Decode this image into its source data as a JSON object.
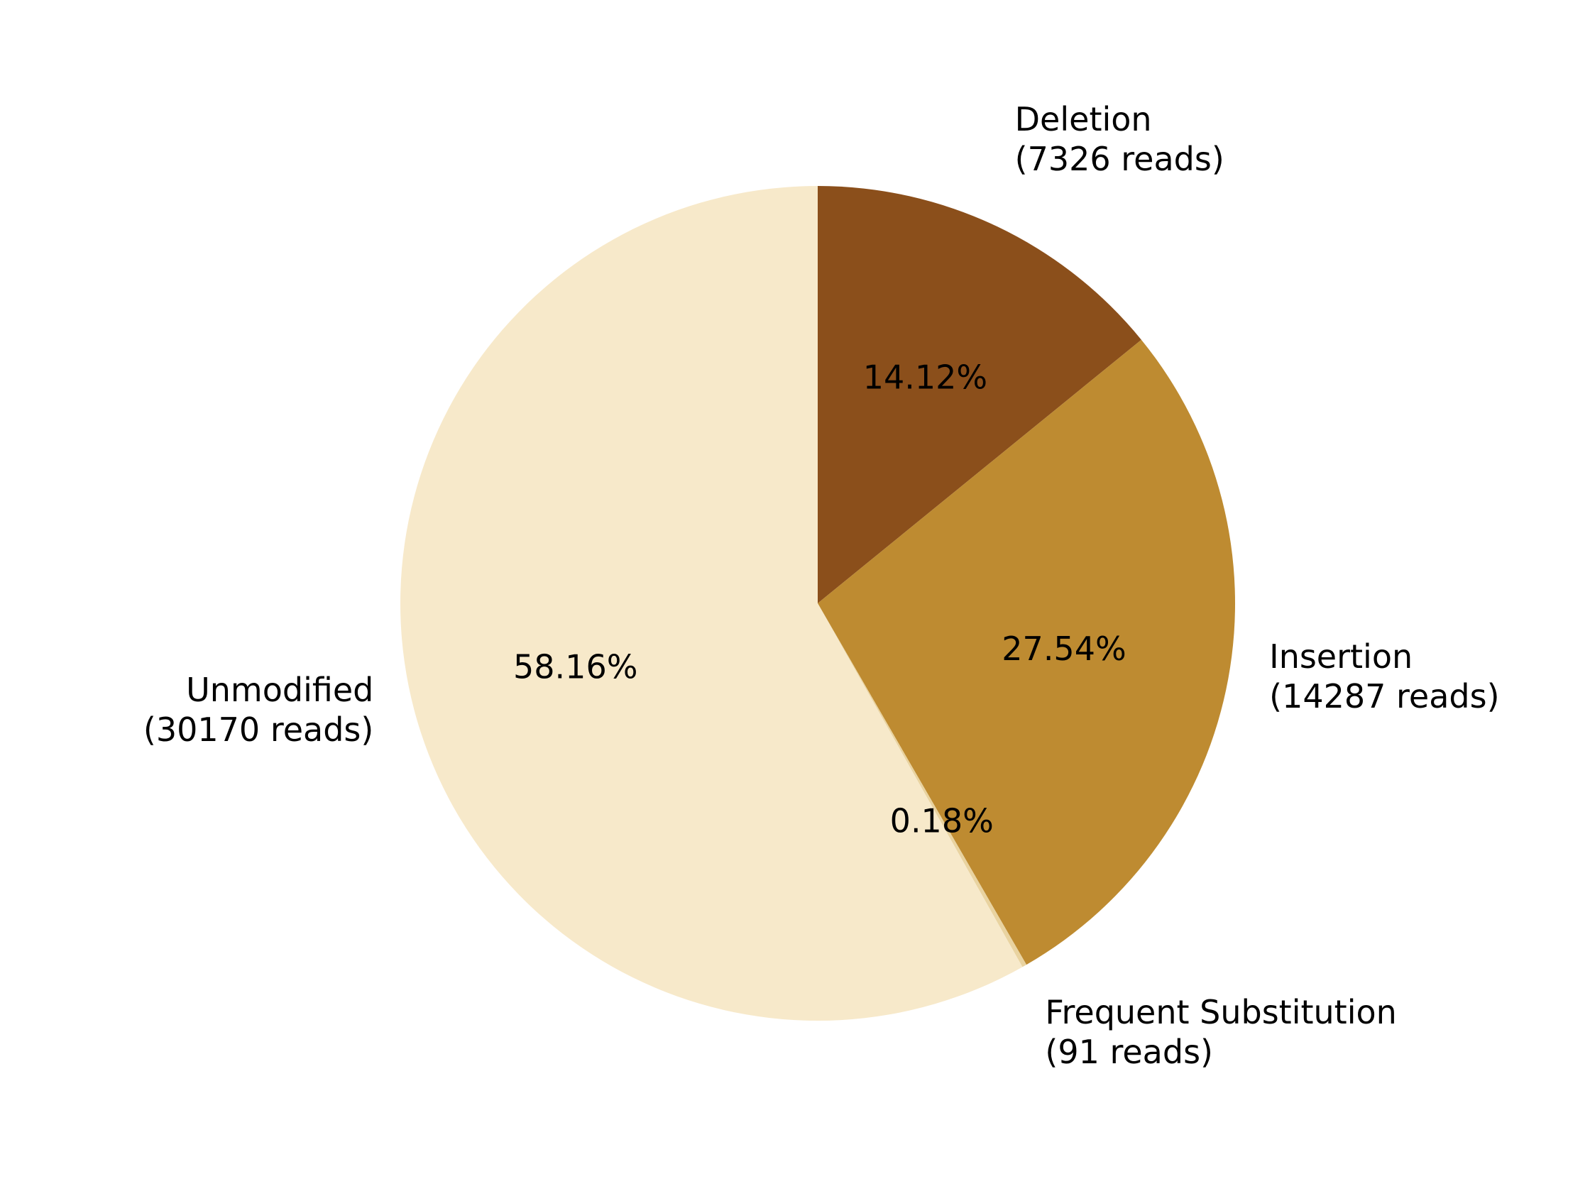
{
  "chart_data": {
    "type": "pie",
    "categories": [
      "Deletion",
      "Insertion",
      "Frequent Substitution",
      "Unmodified"
    ],
    "values": [
      7326,
      14287,
      91,
      30170
    ],
    "read_labels": [
      "(7326 reads)",
      "(14287 reads)",
      "(91 reads)",
      "(30170 reads)"
    ],
    "percent_labels": [
      "14.12%",
      "27.54%",
      "0.18%",
      "58.16%"
    ],
    "colors": [
      "#8b4f1b",
      "#be8b31",
      "#e9d3a0",
      "#f7e9ca"
    ],
    "start_angle_deg": 90,
    "direction": "clockwise"
  }
}
